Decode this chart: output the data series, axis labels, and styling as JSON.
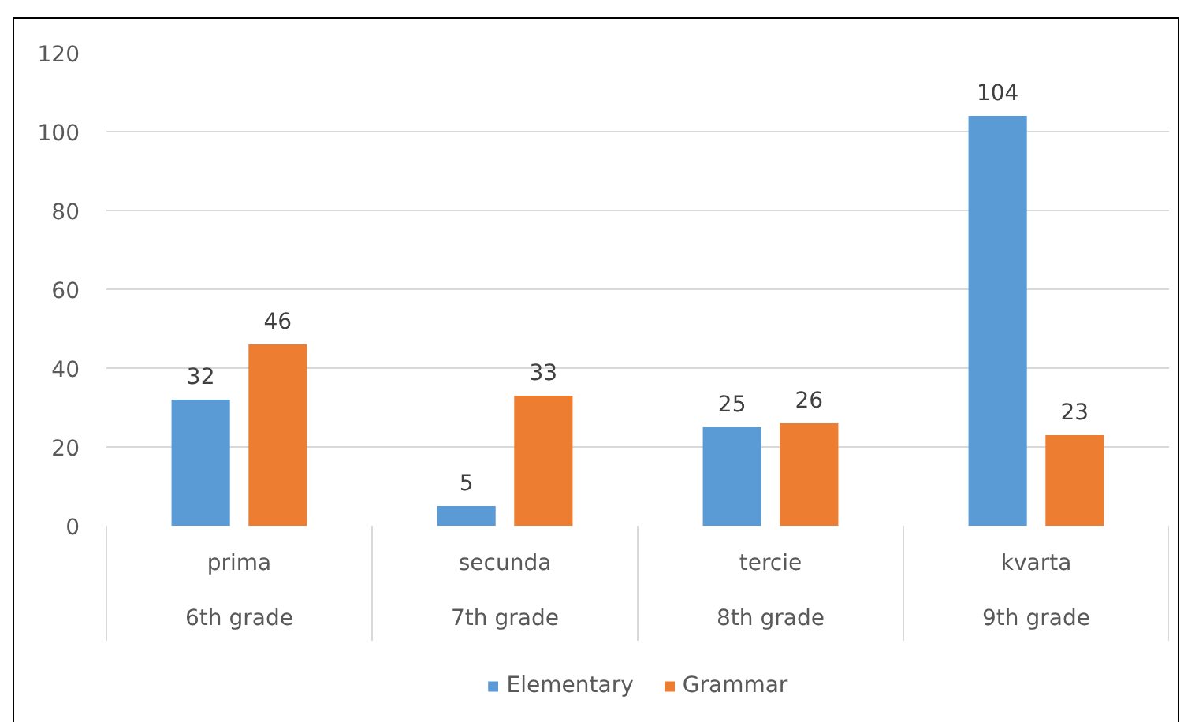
{
  "chart_data": {
    "type": "bar",
    "categories": [
      "prima\n6th grade",
      "secunda\n7th grade",
      "tercie\n8th grade",
      "kvarta\n9th grade"
    ],
    "series": [
      {
        "name": "Elementary",
        "color": "#5b9bd5",
        "values": [
          32,
          5,
          25,
          104
        ]
      },
      {
        "name": "Grammar",
        "color": "#ed7d31",
        "values": [
          46,
          33,
          26,
          23
        ]
      }
    ],
    "ylim": [
      0,
      120
    ],
    "yticks": [
      0,
      20,
      40,
      60,
      80,
      100,
      120
    ],
    "grid": "y",
    "legend": "bottom",
    "data_labels": true
  }
}
